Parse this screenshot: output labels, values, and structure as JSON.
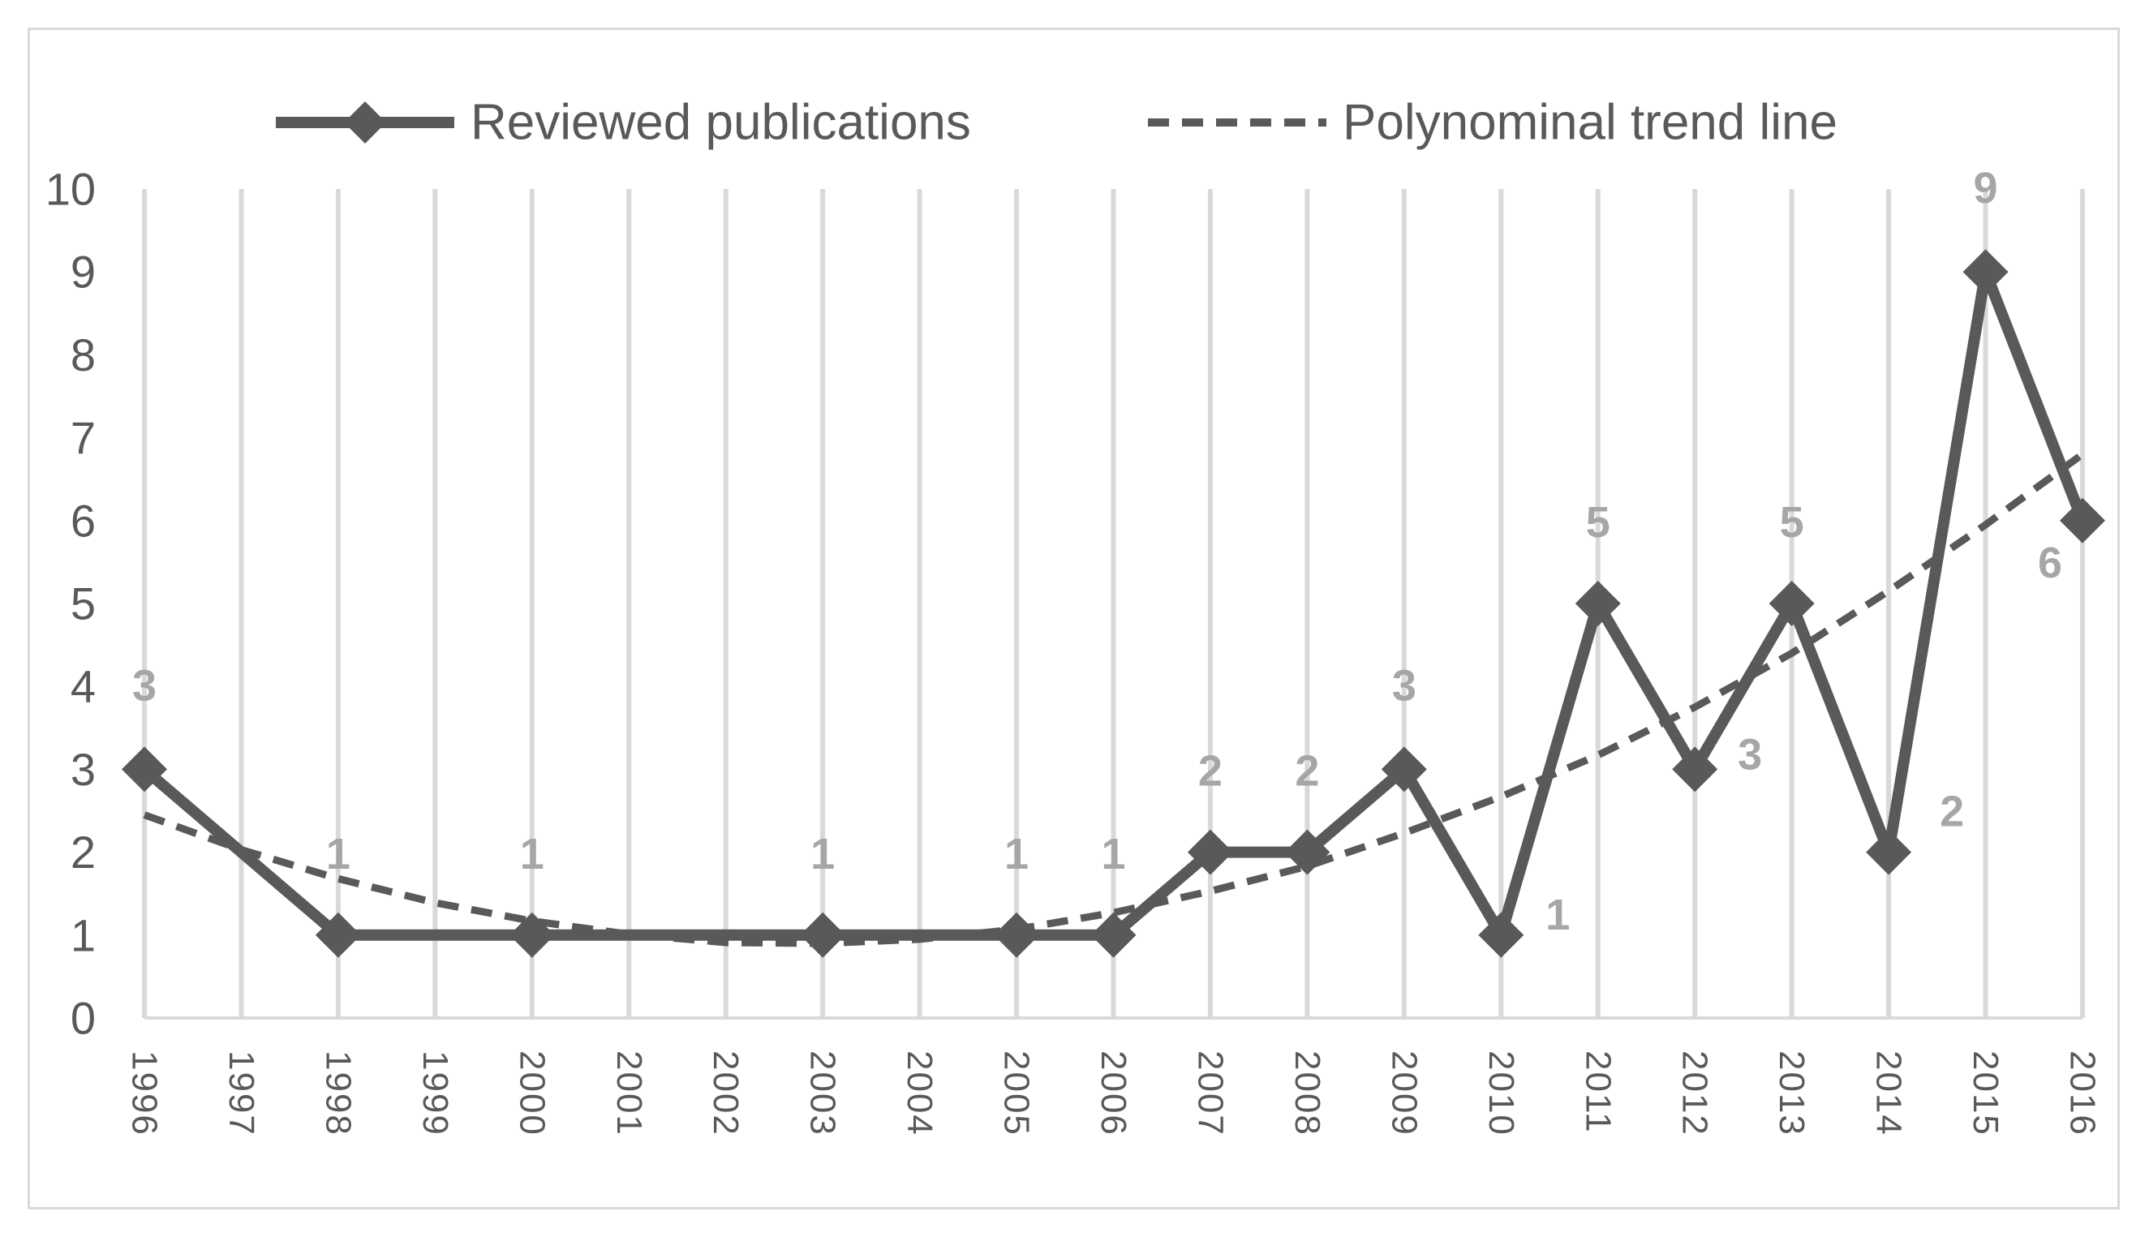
{
  "chart_data": {
    "type": "line",
    "x": [
      "1996",
      "1997",
      "1998",
      "1999",
      "2000",
      "2001",
      "2002",
      "2003",
      "2004",
      "2005",
      "2006",
      "2007",
      "2008",
      "2009",
      "2010",
      "2011",
      "2012",
      "2013",
      "2014",
      "2015",
      "2016"
    ],
    "ylim": [
      0,
      10
    ],
    "yticks": [
      "0",
      "1",
      "2",
      "3",
      "4",
      "5",
      "6",
      "7",
      "8",
      "9",
      "10"
    ],
    "grid": "vertical",
    "legend_position": "top",
    "series": [
      {
        "name": "Reviewed publications",
        "style": "solid-diamond",
        "color": "#595959",
        "points": [
          {
            "x": "1996",
            "y": 3,
            "label": "3"
          },
          {
            "x": "1998",
            "y": 1,
            "label": "1"
          },
          {
            "x": "2000",
            "y": 1,
            "label": "1"
          },
          {
            "x": "2003",
            "y": 1,
            "label": "1"
          },
          {
            "x": "2005",
            "y": 1,
            "label": "1"
          },
          {
            "x": "2006",
            "y": 1,
            "label": "1"
          },
          {
            "x": "2007",
            "y": 2,
            "label": "2"
          },
          {
            "x": "2008",
            "y": 2,
            "label": "2"
          },
          {
            "x": "2009",
            "y": 3,
            "label": "3"
          },
          {
            "x": "2010",
            "y": 1,
            "label": "1"
          },
          {
            "x": "2011",
            "y": 5,
            "label": "5"
          },
          {
            "x": "2012",
            "y": 3,
            "label": "3"
          },
          {
            "x": "2013",
            "y": 5,
            "label": "5"
          },
          {
            "x": "2014",
            "y": 2,
            "label": "2"
          },
          {
            "x": "2015",
            "y": 9,
            "label": "9"
          },
          {
            "x": "2016",
            "y": 6,
            "label": "6"
          }
        ]
      },
      {
        "name": "Polynominal trend line",
        "style": "dashed",
        "color": "#595959",
        "points": [
          {
            "x": "1996",
            "y": 2.45
          },
          {
            "x": "1997",
            "y": 2.03
          },
          {
            "x": "1998",
            "y": 1.68
          },
          {
            "x": "1999",
            "y": 1.39
          },
          {
            "x": "2000",
            "y": 1.17
          },
          {
            "x": "2001",
            "y": 1.01
          },
          {
            "x": "2002",
            "y": 0.91
          },
          {
            "x": "2003",
            "y": 0.9
          },
          {
            "x": "2004",
            "y": 0.95
          },
          {
            "x": "2005",
            "y": 1.07
          },
          {
            "x": "2006",
            "y": 1.27
          },
          {
            "x": "2007",
            "y": 1.53
          },
          {
            "x": "2008",
            "y": 1.83
          },
          {
            "x": "2009",
            "y": 2.23
          },
          {
            "x": "2010",
            "y": 2.67
          },
          {
            "x": "2011",
            "y": 3.17
          },
          {
            "x": "2012",
            "y": 3.75
          },
          {
            "x": "2013",
            "y": 4.4
          },
          {
            "x": "2014",
            "y": 5.15
          },
          {
            "x": "2015",
            "y": 5.95
          },
          {
            "x": "2016",
            "y": 6.8
          }
        ]
      }
    ]
  }
}
